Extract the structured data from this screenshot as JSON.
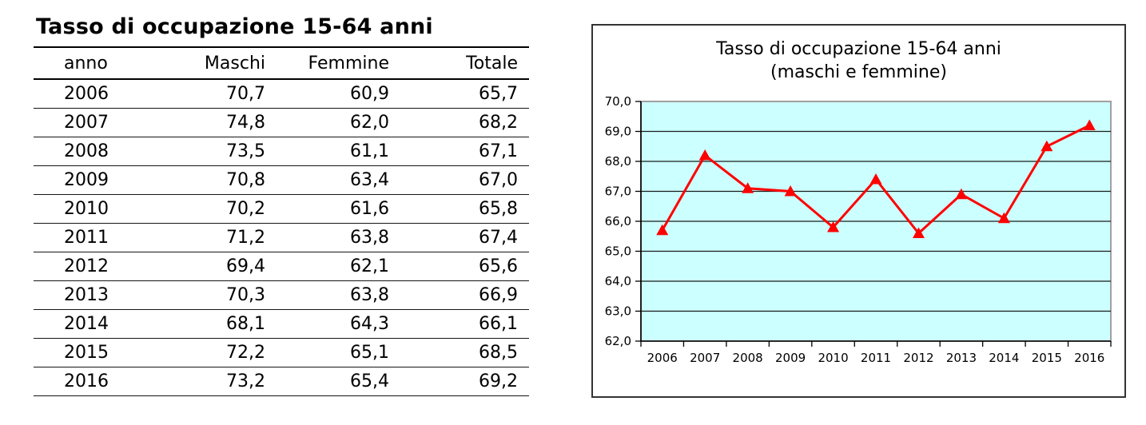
{
  "page": {
    "background": "#FFFFFF"
  },
  "table": {
    "title": "Tasso di occupazione 15-64 anni",
    "columns": [
      "anno",
      "Maschi",
      "Femmine",
      "Totale"
    ],
    "rows": [
      [
        "2006",
        "70,7",
        "60,9",
        "65,7"
      ],
      [
        "2007",
        "74,8",
        "62,0",
        "68,2"
      ],
      [
        "2008",
        "73,5",
        "61,1",
        "67,1"
      ],
      [
        "2009",
        "70,8",
        "63,4",
        "67,0"
      ],
      [
        "2010",
        "70,2",
        "61,6",
        "65,8"
      ],
      [
        "2011",
        "71,2",
        "63,8",
        "67,4"
      ],
      [
        "2012",
        "69,4",
        "62,1",
        "65,6"
      ],
      [
        "2013",
        "70,3",
        "63,8",
        "66,9"
      ],
      [
        "2014",
        "68,1",
        "64,3",
        "66,1"
      ],
      [
        "2015",
        "72,2",
        "65,1",
        "68,5"
      ],
      [
        "2016",
        "73,2",
        "65,4",
        "69,2"
      ]
    ]
  },
  "chart_data": {
    "type": "line",
    "title": "Tasso di occupazione 15-64 anni",
    "subtitle": "(maschi e femmine)",
    "categories": [
      "2006",
      "2007",
      "2008",
      "2009",
      "2010",
      "2011",
      "2012",
      "2013",
      "2014",
      "2015",
      "2016"
    ],
    "series": [
      {
        "name": "Totale (maschi e femmine)",
        "values": [
          65.7,
          68.2,
          67.1,
          67.0,
          65.8,
          67.4,
          65.6,
          66.9,
          66.1,
          68.5,
          69.2
        ]
      }
    ],
    "xlabel": "",
    "ylabel": "",
    "ylim": [
      62.0,
      70.0
    ],
    "ytick_step": 1.0,
    "ytick_labels": [
      "62,0",
      "63,0",
      "64,0",
      "65,0",
      "66,0",
      "67,0",
      "68,0",
      "69,0",
      "70,0"
    ],
    "grid": true,
    "legend": "none",
    "marker": "triangle-up",
    "colors": {
      "line": "#FF0000",
      "marker": "#FF0000",
      "plot_bg": "#CCFFFF",
      "gridline": "#1A1A1A",
      "plot_border": "#A0A0A0",
      "axis": "#000000",
      "chart_border": "#333333",
      "text": "#000000"
    }
  }
}
